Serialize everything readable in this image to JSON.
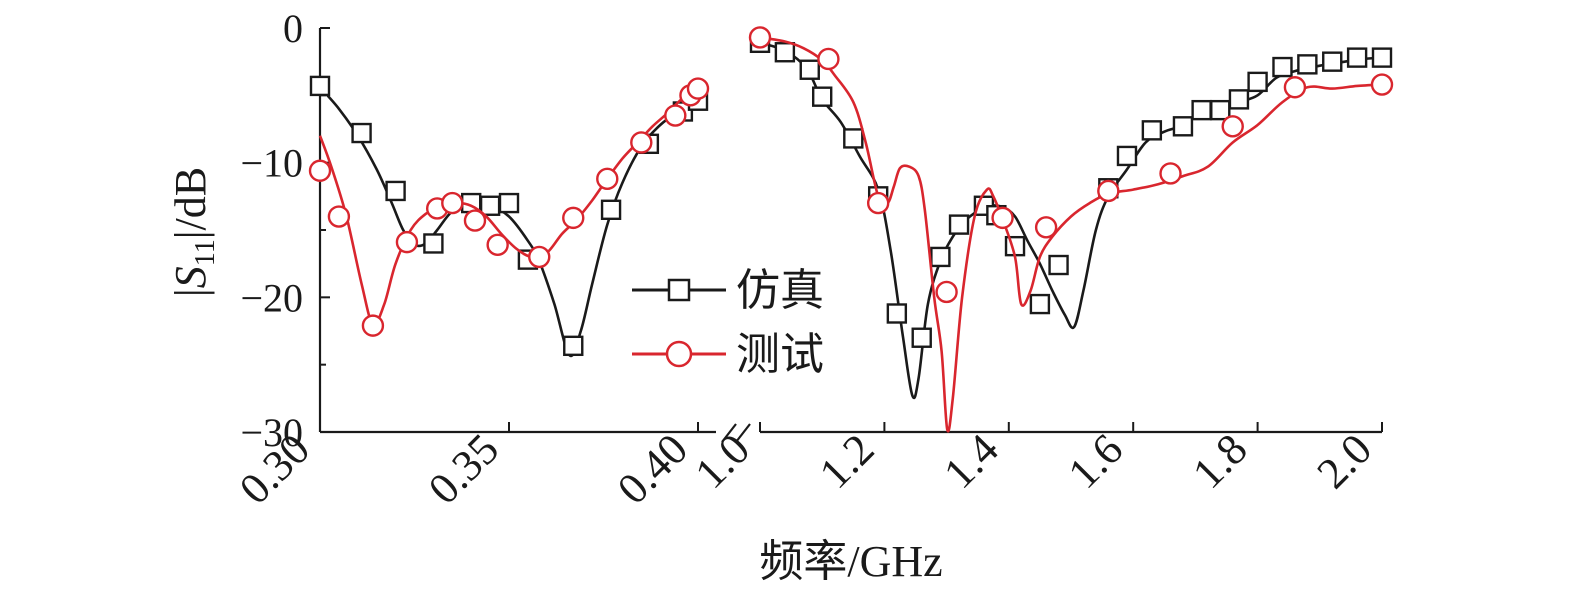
{
  "chart_data": {
    "type": "line",
    "xlabel": "频率/GHz",
    "ylabel_parts": {
      "open": "|",
      "symbol": "S",
      "subscript": "11",
      "close": "|/dB"
    },
    "ylim": [
      -30,
      0
    ],
    "yticks": [
      0,
      -10,
      -20,
      -30
    ],
    "ytick_labels": [
      "0",
      "−10",
      "−20",
      "−30"
    ],
    "x_axis_break": true,
    "x_segments": [
      {
        "range": [
          0.3,
          0.4
        ],
        "ticks": [
          0.3,
          0.35,
          0.4
        ],
        "tick_labels": [
          "0.30",
          "0.35",
          "0.40"
        ]
      },
      {
        "range": [
          1.0,
          2.0
        ],
        "ticks": [
          1.0,
          1.2,
          1.4,
          1.6,
          1.8,
          2.0
        ],
        "tick_labels": [
          "1.0",
          "1.2",
          "1.4",
          "1.6",
          "1.8",
          "2.0"
        ]
      }
    ],
    "legend": {
      "position": "center-left",
      "entries": [
        "仿真",
        "测试"
      ]
    },
    "series": [
      {
        "name": "仿真",
        "color": "#1a1a1a",
        "marker": "square",
        "segments": [
          {
            "curve": [
              [
                0.3,
                -4.4
              ],
              [
                0.305,
                -6.0
              ],
              [
                0.31,
                -8.0
              ],
              [
                0.315,
                -10.5
              ],
              [
                0.319,
                -13.0
              ],
              [
                0.322,
                -15.0
              ],
              [
                0.325,
                -16.1
              ],
              [
                0.328,
                -16.0
              ],
              [
                0.331,
                -15.0
              ],
              [
                0.335,
                -13.6
              ],
              [
                0.34,
                -12.9
              ],
              [
                0.345,
                -13.2
              ],
              [
                0.35,
                -14.0
              ],
              [
                0.355,
                -15.8
              ],
              [
                0.358,
                -17.3
              ],
              [
                0.362,
                -20.5
              ],
              [
                0.366,
                -24.3
              ],
              [
                0.369,
                -22.5
              ],
              [
                0.372,
                -19.0
              ],
              [
                0.376,
                -14.6
              ],
              [
                0.38,
                -11.5
              ],
              [
                0.385,
                -8.8
              ],
              [
                0.39,
                -7.2
              ],
              [
                0.395,
                -6.2
              ],
              [
                0.4,
                -5.5
              ]
            ],
            "markers": [
              [
                0.3,
                -4.3
              ],
              [
                0.311,
                -7.8
              ],
              [
                0.32,
                -12.1
              ],
              [
                0.33,
                -16.0
              ],
              [
                0.34,
                -13.0
              ],
              [
                0.345,
                -13.2
              ],
              [
                0.35,
                -13.0
              ],
              [
                0.355,
                -17.2
              ],
              [
                0.367,
                -23.6
              ],
              [
                0.377,
                -13.5
              ],
              [
                0.387,
                -8.6
              ],
              [
                0.396,
                -6.2
              ],
              [
                0.4,
                -5.4
              ]
            ]
          },
          {
            "curve": [
              [
                1.0,
                -1.1
              ],
              [
                1.03,
                -1.5
              ],
              [
                1.06,
                -2.3
              ],
              [
                1.08,
                -3.4
              ],
              [
                1.1,
                -5.3
              ],
              [
                1.13,
                -7.0
              ],
              [
                1.16,
                -9.5
              ],
              [
                1.19,
                -12.0
              ],
              [
                1.21,
                -16.5
              ],
              [
                1.23,
                -23.0
              ],
              [
                1.245,
                -27.3
              ],
              [
                1.255,
                -26.0
              ],
              [
                1.27,
                -20.5
              ],
              [
                1.29,
                -17.3
              ],
              [
                1.31,
                -15.5
              ],
              [
                1.33,
                -14.3
              ],
              [
                1.35,
                -13.6
              ],
              [
                1.37,
                -13.2
              ],
              [
                1.39,
                -13.3
              ],
              [
                1.41,
                -14.0
              ],
              [
                1.43,
                -15.8
              ],
              [
                1.45,
                -17.5
              ],
              [
                1.47,
                -19.5
              ],
              [
                1.49,
                -21.3
              ],
              [
                1.505,
                -22.2
              ],
              [
                1.52,
                -19.5
              ],
              [
                1.54,
                -15.0
              ],
              [
                1.56,
                -12.5
              ],
              [
                1.59,
                -10.5
              ],
              [
                1.62,
                -8.5
              ],
              [
                1.65,
                -7.7
              ],
              [
                1.68,
                -7.2
              ],
              [
                1.71,
                -6.1
              ],
              [
                1.74,
                -6.0
              ],
              [
                1.77,
                -5.5
              ],
              [
                1.8,
                -5.0
              ],
              [
                1.83,
                -3.7
              ],
              [
                1.86,
                -3.2
              ],
              [
                1.9,
                -2.8
              ],
              [
                1.94,
                -2.5
              ],
              [
                1.97,
                -2.3
              ],
              [
                2.0,
                -2.2
              ]
            ],
            "markers": [
              [
                1.0,
                -1.1
              ],
              [
                1.04,
                -1.8
              ],
              [
                1.08,
                -3.1
              ],
              [
                1.1,
                -5.1
              ],
              [
                1.15,
                -8.2
              ],
              [
                1.19,
                -12.5
              ],
              [
                1.22,
                -21.2
              ],
              [
                1.26,
                -23.0
              ],
              [
                1.29,
                -17.0
              ],
              [
                1.32,
                -14.6
              ],
              [
                1.36,
                -13.2
              ],
              [
                1.38,
                -13.9
              ],
              [
                1.41,
                -16.2
              ],
              [
                1.45,
                -20.5
              ],
              [
                1.48,
                -17.6
              ],
              [
                1.56,
                -11.9
              ],
              [
                1.59,
                -9.5
              ],
              [
                1.63,
                -7.6
              ],
              [
                1.68,
                -7.3
              ],
              [
                1.71,
                -6.1
              ],
              [
                1.74,
                -6.1
              ],
              [
                1.77,
                -5.3
              ],
              [
                1.8,
                -4.0
              ],
              [
                1.84,
                -2.9
              ],
              [
                1.88,
                -2.7
              ],
              [
                1.92,
                -2.5
              ],
              [
                1.96,
                -2.2
              ],
              [
                2.0,
                -2.2
              ]
            ]
          }
        ]
      },
      {
        "name": "测试",
        "color": "#d9262e",
        "marker": "circle",
        "segments": [
          {
            "curve": [
              [
                0.3,
                -8.0
              ],
              [
                0.303,
                -10.3
              ],
              [
                0.307,
                -14.0
              ],
              [
                0.311,
                -19.0
              ],
              [
                0.314,
                -22.0
              ],
              [
                0.317,
                -20.5
              ],
              [
                0.32,
                -17.5
              ],
              [
                0.324,
                -15.0
              ],
              [
                0.328,
                -13.8
              ],
              [
                0.332,
                -13.3
              ],
              [
                0.336,
                -13.0
              ],
              [
                0.34,
                -13.2
              ],
              [
                0.344,
                -14.0
              ],
              [
                0.348,
                -15.3
              ],
              [
                0.352,
                -16.4
              ],
              [
                0.356,
                -17.0
              ],
              [
                0.36,
                -16.7
              ],
              [
                0.364,
                -15.3
              ],
              [
                0.368,
                -14.2
              ],
              [
                0.372,
                -12.8
              ],
              [
                0.376,
                -11.2
              ],
              [
                0.38,
                -9.7
              ],
              [
                0.384,
                -8.5
              ],
              [
                0.388,
                -7.3
              ],
              [
                0.392,
                -6.3
              ],
              [
                0.396,
                -5.2
              ],
              [
                0.4,
                -4.5
              ]
            ],
            "markers": [
              [
                0.3,
                -10.6
              ],
              [
                0.305,
                -14.0
              ],
              [
                0.314,
                -22.1
              ],
              [
                0.323,
                -15.9
              ],
              [
                0.331,
                -13.4
              ],
              [
                0.335,
                -13.0
              ],
              [
                0.341,
                -14.3
              ],
              [
                0.347,
                -16.1
              ],
              [
                0.358,
                -17.0
              ],
              [
                0.367,
                -14.1
              ],
              [
                0.376,
                -11.2
              ],
              [
                0.385,
                -8.5
              ],
              [
                0.394,
                -6.5
              ],
              [
                0.398,
                -5.0
              ],
              [
                0.4,
                -4.5
              ]
            ]
          },
          {
            "curve": [
              [
                1.0,
                -0.7
              ],
              [
                1.04,
                -1.0
              ],
              [
                1.07,
                -1.5
              ],
              [
                1.1,
                -2.4
              ],
              [
                1.12,
                -3.5
              ],
              [
                1.15,
                -5.5
              ],
              [
                1.17,
                -8.5
              ],
              [
                1.19,
                -12.5
              ],
              [
                1.205,
                -13.0
              ],
              [
                1.215,
                -11.8
              ],
              [
                1.225,
                -10.4
              ],
              [
                1.24,
                -10.3
              ],
              [
                1.255,
                -11.0
              ],
              [
                1.265,
                -13.5
              ],
              [
                1.28,
                -20.0
              ],
              [
                1.292,
                -24.0
              ],
              [
                1.301,
                -29.8
              ],
              [
                1.31,
                -27.5
              ],
              [
                1.325,
                -20.0
              ],
              [
                1.345,
                -14.0
              ],
              [
                1.365,
                -12.0
              ],
              [
                1.375,
                -12.5
              ],
              [
                1.39,
                -14.2
              ],
              [
                1.41,
                -17.0
              ],
              [
                1.42,
                -20.5
              ],
              [
                1.435,
                -19.5
              ],
              [
                1.45,
                -17.0
              ],
              [
                1.47,
                -15.5
              ],
              [
                1.5,
                -14.0
              ],
              [
                1.53,
                -13.0
              ],
              [
                1.56,
                -12.3
              ],
              [
                1.6,
                -12.0
              ],
              [
                1.64,
                -11.6
              ],
              [
                1.68,
                -11.0
              ],
              [
                1.72,
                -10.3
              ],
              [
                1.76,
                -8.5
              ],
              [
                1.8,
                -7.2
              ],
              [
                1.84,
                -5.5
              ],
              [
                1.88,
                -4.4
              ],
              [
                1.92,
                -4.5
              ],
              [
                1.96,
                -4.3
              ],
              [
                2.0,
                -4.2
              ]
            ],
            "markers": [
              [
                1.0,
                -0.7
              ],
              [
                1.11,
                -2.3
              ],
              [
                1.19,
                -13.0
              ],
              [
                1.3,
                -19.6
              ],
              [
                1.39,
                -14.1
              ],
              [
                1.46,
                -14.8
              ],
              [
                1.56,
                -12.1
              ],
              [
                1.66,
                -10.8
              ],
              [
                1.76,
                -7.3
              ],
              [
                1.86,
                -4.4
              ],
              [
                2.0,
                -4.2
              ]
            ]
          }
        ]
      }
    ]
  }
}
